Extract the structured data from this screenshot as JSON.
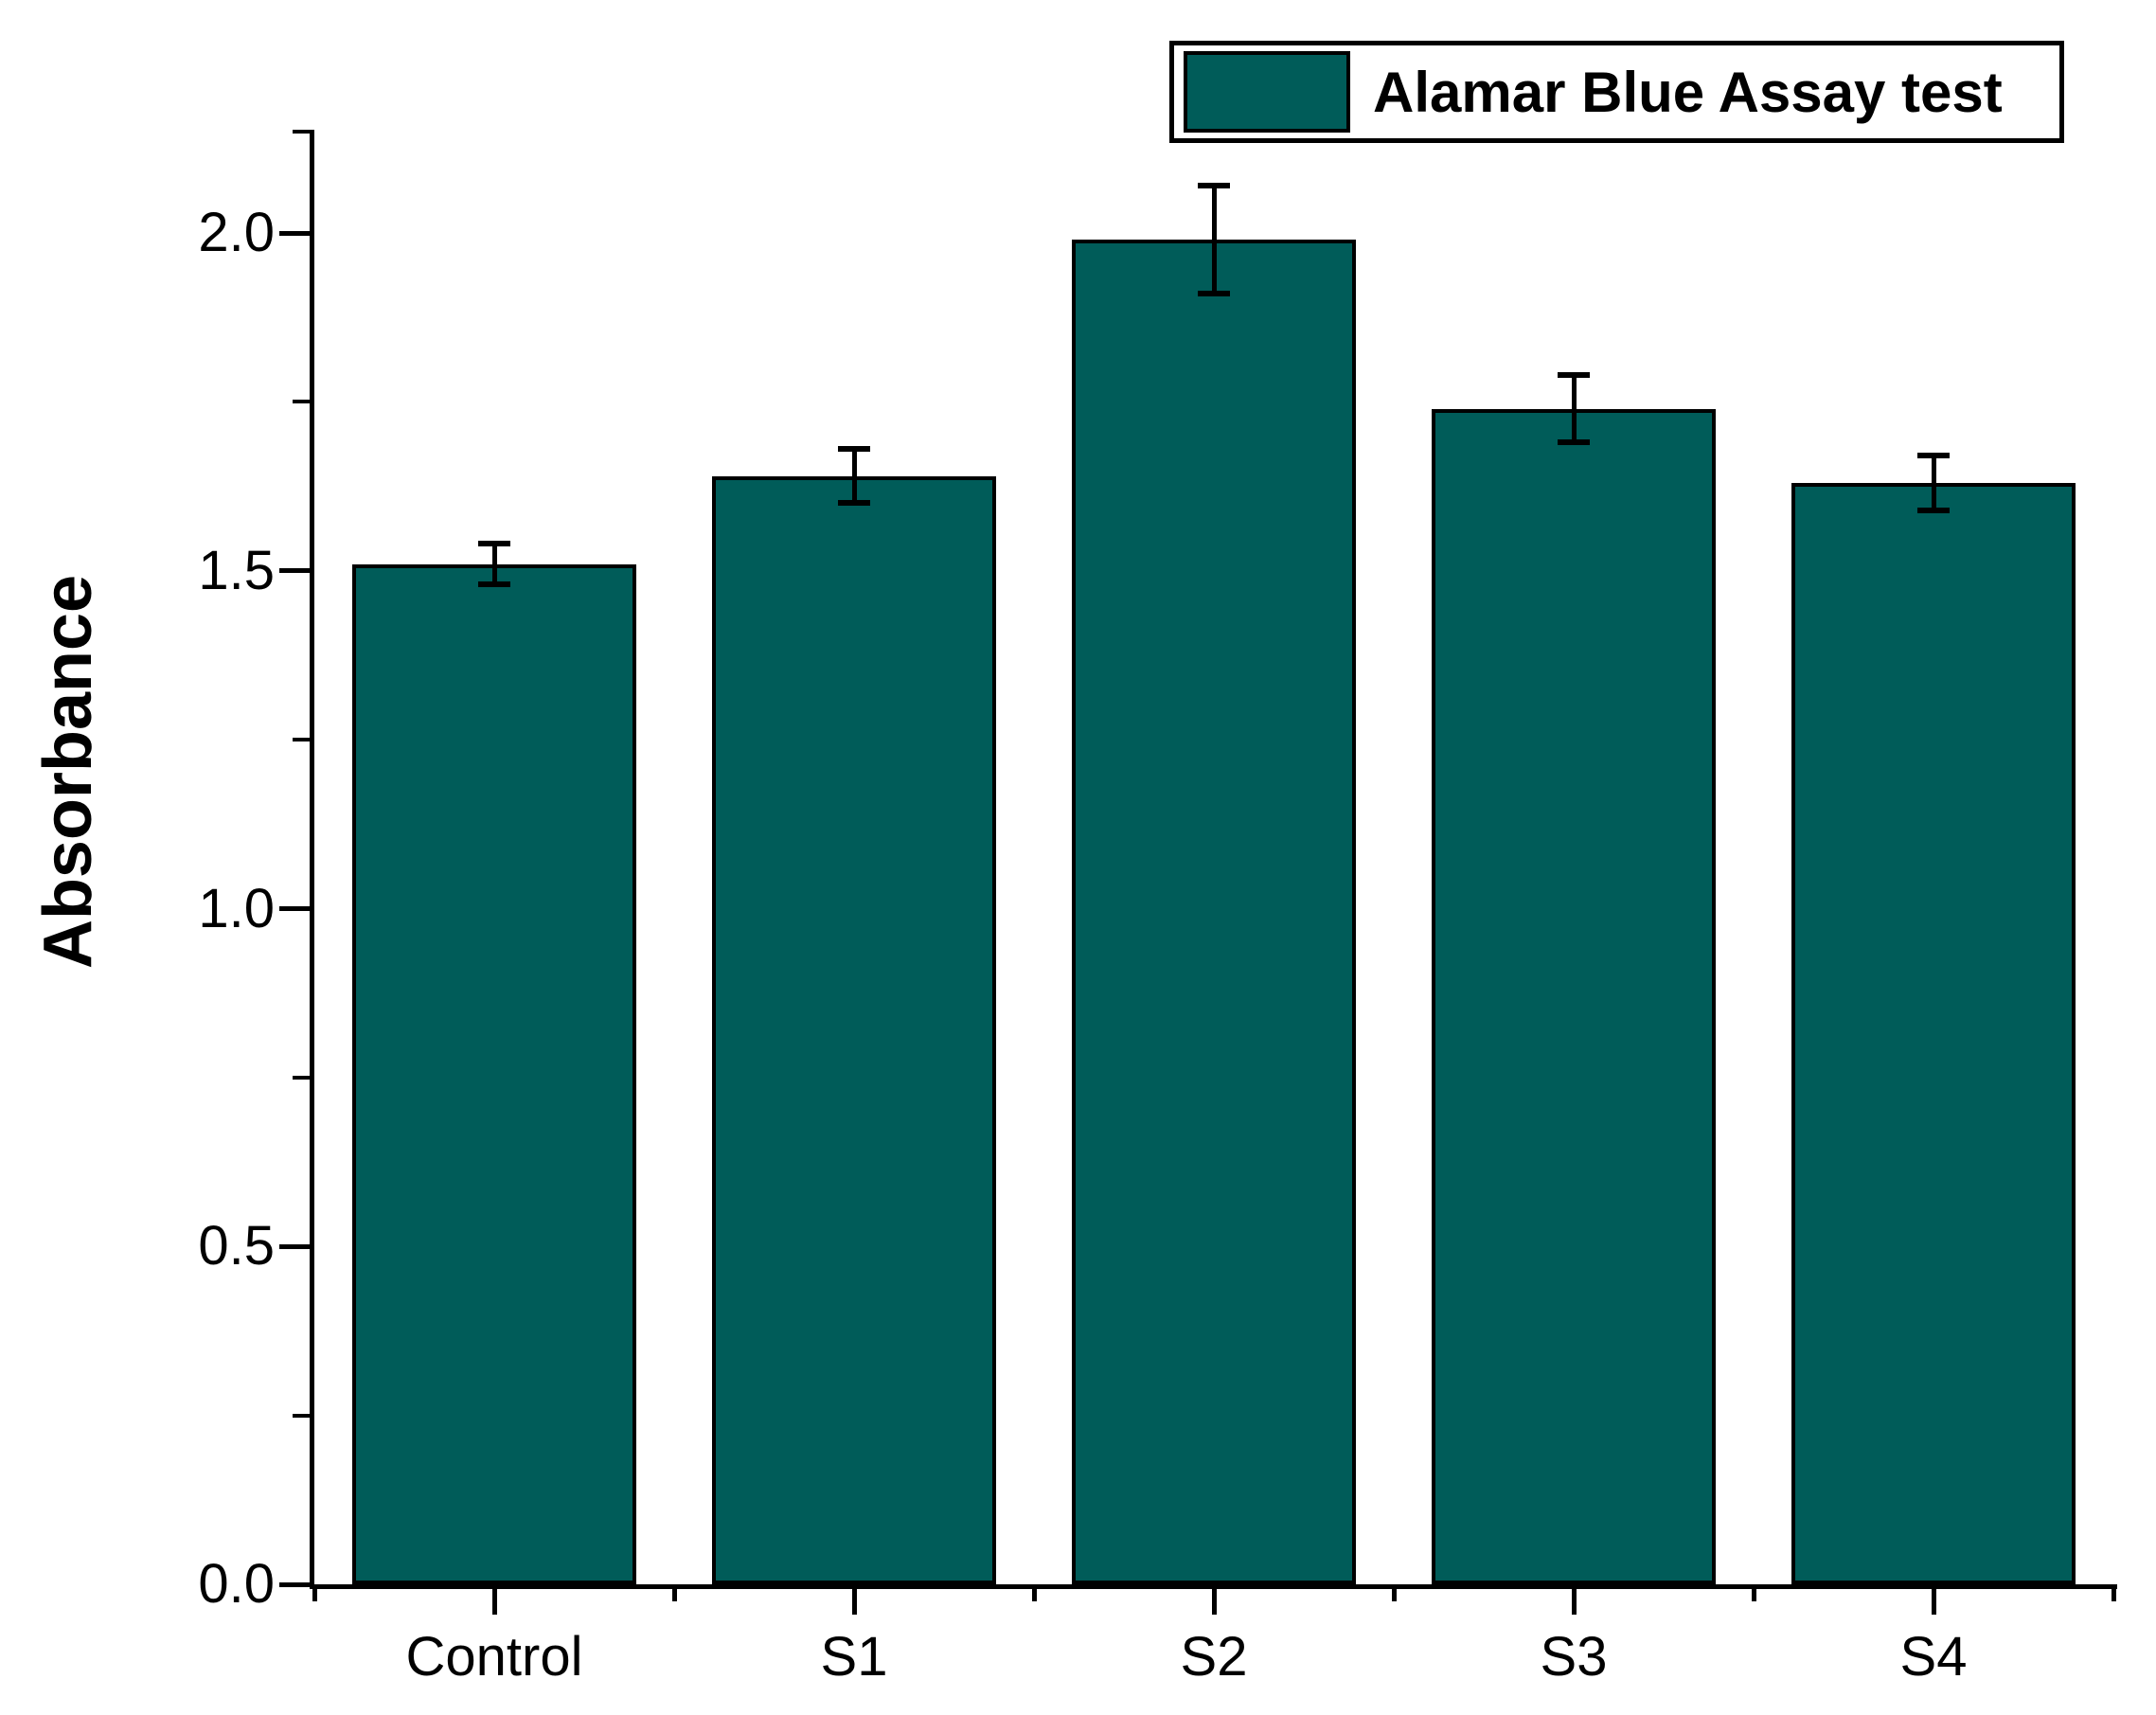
{
  "figure": {
    "background": "#ffffff"
  },
  "legend": {
    "label": "Alamar Blue Assay test",
    "swatch_color": "#005c59",
    "position": "top-right"
  },
  "chart_data": {
    "type": "bar",
    "title": "",
    "xlabel": "",
    "ylabel": "Absorbance",
    "categories": [
      "Control",
      "S1",
      "S2",
      "S3",
      "S4"
    ],
    "values": [
      1.51,
      1.64,
      1.99,
      1.74,
      1.63
    ],
    "errors": [
      0.03,
      0.04,
      0.08,
      0.05,
      0.04
    ],
    "series_name": "Alamar Blue Assay test",
    "bar_color": "#005c59",
    "bar_border_color": "#000000",
    "error_bar_color": "#000000",
    "ylim": [
      0.0,
      2.15
    ],
    "ytick_labels": [
      "0.0",
      "0.5",
      "1.0",
      "1.5",
      "2.0"
    ],
    "ytick_values": [
      0.0,
      0.5,
      1.0,
      1.5,
      2.0
    ],
    "yminor_values": [
      0.25,
      0.75,
      1.25,
      1.75
    ],
    "grid": false,
    "error_bars": true,
    "legend_position": "top-right"
  }
}
